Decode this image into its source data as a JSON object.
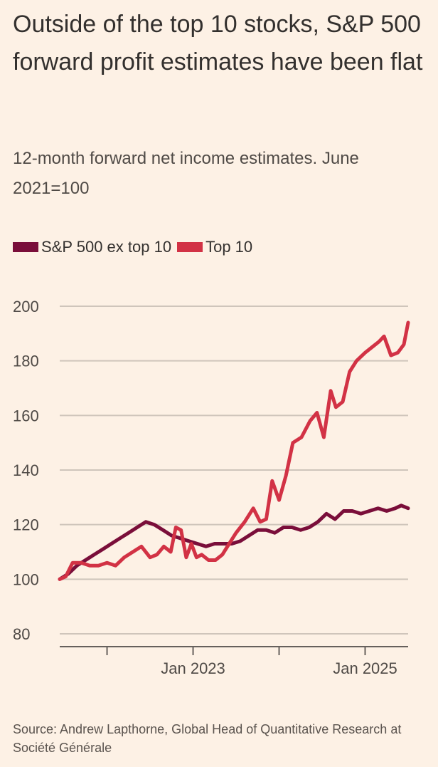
{
  "header": {
    "title": "Outside of the top 10 stocks, S&P 500 forward profit estimates have been flat",
    "subtitle": "12-month forward net income estimates. June 2021=100"
  },
  "legend": [
    {
      "label": "S&P 500 ex top 10",
      "color": "#7a0e3a"
    },
    {
      "label": "Top 10",
      "color": "#d23245"
    }
  ],
  "footer": {
    "source": "Source: Andrew Lapthorne, Global Head of Quantitative Research at Société Générale"
  },
  "chart_data": {
    "type": "line",
    "title": "Outside of the top 10 stocks, S&P 500 forward profit estimates have been flat",
    "subtitle": "12-month forward net income estimates. June 2021=100",
    "xlabel": "",
    "ylabel": "",
    "xlim": [
      2021.45,
      2025.5
    ],
    "ylim": [
      80,
      200
    ],
    "yticks": [
      200,
      180,
      160,
      140,
      120,
      100,
      80
    ],
    "xticks": [
      2022,
      2023,
      2024,
      2025
    ],
    "xtick_labels": [
      "",
      "Jan 2023",
      "",
      "Jan 2025"
    ],
    "grid": true,
    "legend_position": "top-left",
    "series": [
      {
        "name": "S&P 500 ex top 10",
        "color": "#7a0e3a",
        "x": [
          2021.45,
          2021.55,
          2021.65,
          2021.75,
          2021.85,
          2021.95,
          2022.05,
          2022.15,
          2022.25,
          2022.35,
          2022.45,
          2022.55,
          2022.65,
          2022.75,
          2022.85,
          2022.95,
          2023.05,
          2023.15,
          2023.25,
          2023.35,
          2023.45,
          2023.55,
          2023.65,
          2023.75,
          2023.85,
          2023.95,
          2024.05,
          2024.15,
          2024.25,
          2024.35,
          2024.45,
          2024.55,
          2024.65,
          2024.75,
          2024.85,
          2024.95,
          2025.05,
          2025.15,
          2025.25,
          2025.35,
          2025.42,
          2025.5
        ],
        "values": [
          100,
          102,
          105,
          107,
          109,
          111,
          113,
          115,
          117,
          119,
          121,
          120,
          118,
          116,
          115,
          114,
          113,
          112,
          113,
          113,
          113,
          114,
          116,
          118,
          118,
          117,
          119,
          119,
          118,
          119,
          121,
          124,
          122,
          125,
          125,
          124,
          125,
          126,
          125,
          126,
          127,
          126
        ]
      },
      {
        "name": "Top 10",
        "color": "#d23245",
        "x": [
          2021.45,
          2021.52,
          2021.6,
          2021.7,
          2021.8,
          2021.9,
          2022.0,
          2022.1,
          2022.2,
          2022.3,
          2022.4,
          2022.5,
          2022.58,
          2022.66,
          2022.74,
          2022.8,
          2022.86,
          2022.92,
          2022.98,
          2023.04,
          2023.1,
          2023.18,
          2023.26,
          2023.34,
          2023.42,
          2023.5,
          2023.6,
          2023.7,
          2023.78,
          2023.85,
          2023.92,
          2024.0,
          2024.08,
          2024.16,
          2024.26,
          2024.36,
          2024.44,
          2024.52,
          2024.6,
          2024.66,
          2024.74,
          2024.82,
          2024.9,
          2025.0,
          2025.08,
          2025.16,
          2025.22,
          2025.3,
          2025.38,
          2025.45,
          2025.5
        ],
        "values": [
          100,
          101,
          106,
          106,
          105,
          105,
          106,
          105,
          108,
          110,
          112,
          108,
          109,
          112,
          110,
          119,
          118,
          108,
          113,
          108,
          109,
          107,
          107,
          109,
          113,
          117,
          121,
          126,
          121,
          122,
          136,
          129,
          138,
          150,
          152,
          158,
          161,
          152,
          169,
          163,
          165,
          176,
          180,
          183,
          185,
          187,
          189,
          182,
          183,
          186,
          194
        ]
      }
    ]
  }
}
